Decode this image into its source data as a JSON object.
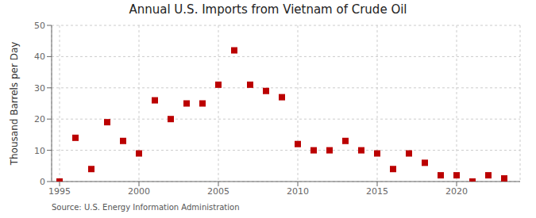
{
  "chart_data": {
    "type": "scatter",
    "title": "Annual U.S. Imports from Vietnam of Crude Oil",
    "ylabel": "Thousand Barrels per Day",
    "annotation": "Source: U.S. Energy Information Administration",
    "x": [
      1995,
      1996,
      1997,
      1998,
      1999,
      2000,
      2001,
      2002,
      2003,
      2004,
      2005,
      2006,
      2007,
      2008,
      2009,
      2010,
      2011,
      2012,
      2013,
      2014,
      2015,
      2016,
      2017,
      2018,
      2019,
      2020,
      2021,
      2022,
      2023
    ],
    "values": [
      0,
      14,
      4,
      19,
      13,
      9,
      26,
      20,
      25,
      25,
      31,
      42,
      31,
      29,
      27,
      12,
      10,
      10,
      13,
      10,
      9,
      4,
      9,
      6,
      2,
      2,
      0,
      2,
      1
    ],
    "color": "#bb0000",
    "marker": "square",
    "xlim": [
      1994.5,
      2024
    ],
    "ylim": [
      0,
      50
    ],
    "xticks": [
      1995,
      2000,
      2005,
      2010,
      2015,
      2020
    ],
    "yticks": [
      0,
      10,
      20,
      30,
      40,
      50
    ],
    "grid": true
  }
}
